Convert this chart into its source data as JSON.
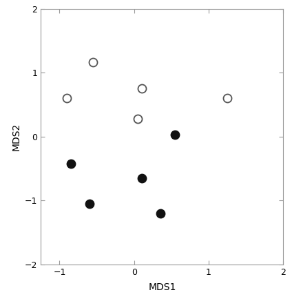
{
  "open_circles": [
    [
      -0.9,
      0.6
    ],
    [
      -0.55,
      1.17
    ],
    [
      0.05,
      0.28
    ],
    [
      0.1,
      0.75
    ],
    [
      1.25,
      0.6
    ]
  ],
  "filled_circles": [
    [
      -0.85,
      -0.42
    ],
    [
      -0.6,
      -1.05
    ],
    [
      0.1,
      -0.65
    ],
    [
      0.35,
      -1.2
    ],
    [
      0.55,
      0.03
    ]
  ],
  "xlim": [
    -1.25,
    2.0
  ],
  "ylim": [
    -2.0,
    2.0
  ],
  "xticks": [
    -1,
    0,
    1,
    2
  ],
  "yticks": [
    -2,
    -1,
    0,
    1,
    2
  ],
  "xlabel": "MDS1",
  "ylabel": "MDS2",
  "open_color": "white",
  "open_edgecolor": "#555555",
  "filled_color": "#111111",
  "marker_size": 75,
  "open_linewidth": 1.3,
  "bg_color": "#ffffff",
  "spine_color": "#999999",
  "spine_linewidth": 0.8,
  "tick_label_size": 9,
  "axis_label_size": 10
}
